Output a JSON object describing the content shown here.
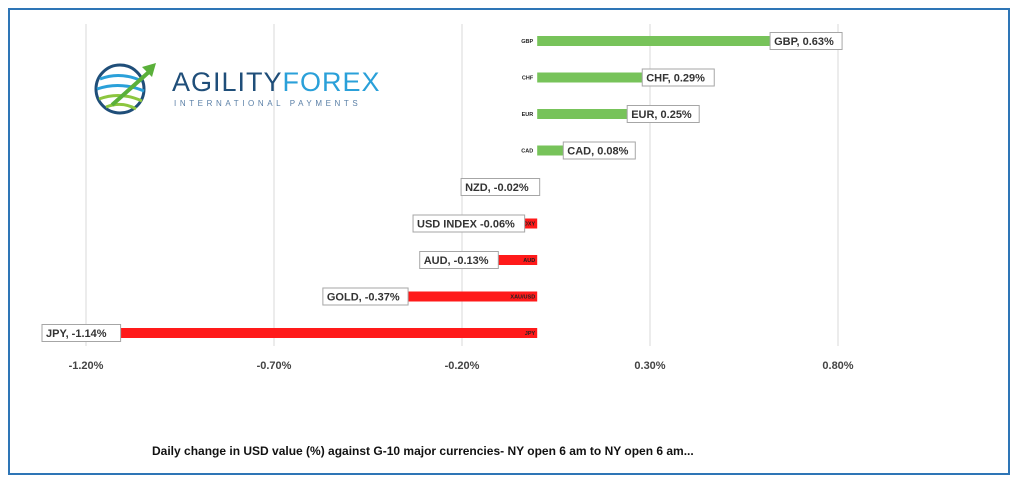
{
  "logo": {
    "name_part1": "AGILITY",
    "name_part2": "FOREX",
    "tagline": "INTERNATIONAL PAYMENTS"
  },
  "caption": "Daily change in  USD value (%)  against  G-10 major currencies- NY open 6 am to NY open 6 am...",
  "chart_data": {
    "type": "bar",
    "orientation": "horizontal",
    "title": "",
    "xlabel": "",
    "ylabel": "",
    "xlim": [
      -1.2,
      0.8
    ],
    "x_ticks": [
      -1.2,
      -0.7,
      -0.2,
      0.3,
      0.8
    ],
    "x_tick_labels": [
      "-1.20%",
      "-0.70%",
      "-0.20%",
      "0.30%",
      "0.80%"
    ],
    "grid": true,
    "positive_color": "#77c35a",
    "negative_color": "#ff1a1a",
    "categories": [
      "GBP",
      "CHF",
      "EUR",
      "CAD",
      "NZD",
      "DXY",
      "AUD",
      "XAU/USD",
      "JPY"
    ],
    "values": [
      0.63,
      0.29,
      0.25,
      0.08,
      -0.02,
      -0.06,
      -0.13,
      -0.37,
      -1.14
    ],
    "data_labels": [
      "GBP, 0.63%",
      "CHF, 0.29%",
      "EUR, 0.25%",
      "CAD, 0.08%",
      "NZD, -0.02%",
      "USD INDEX -0.06%",
      "AUD, -0.13%",
      "GOLD, -0.37%",
      "JPY, -1.14%"
    ]
  }
}
